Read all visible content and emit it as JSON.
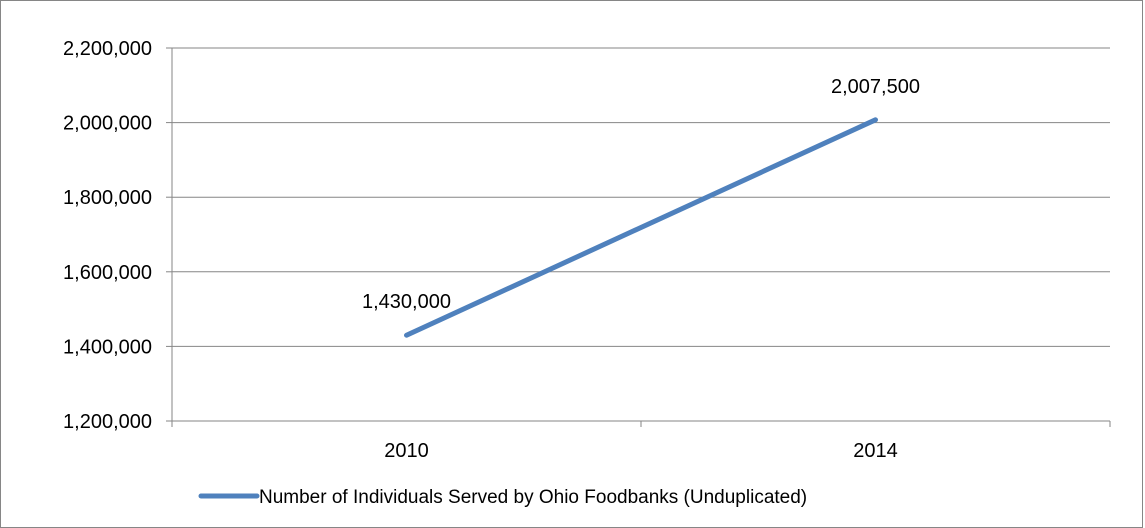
{
  "chart_data": {
    "type": "line",
    "title": "",
    "xlabel": "",
    "ylabel": "",
    "categories": [
      "2010",
      "2014"
    ],
    "ylim": [
      1200000,
      2200000
    ],
    "y_ticks": [
      "1,200,000",
      "1,400,000",
      "1,600,000",
      "1,800,000",
      "2,000,000",
      "2,200,000"
    ],
    "grid": true,
    "legend_position": "bottom",
    "series": [
      {
        "name": "Number of Individuals Served by Ohio Foodbanks (Unduplicated)",
        "values": [
          1430000,
          2007500
        ],
        "data_labels": [
          "1,430,000",
          "2,007,500"
        ],
        "color": "#4F81BD"
      }
    ]
  }
}
